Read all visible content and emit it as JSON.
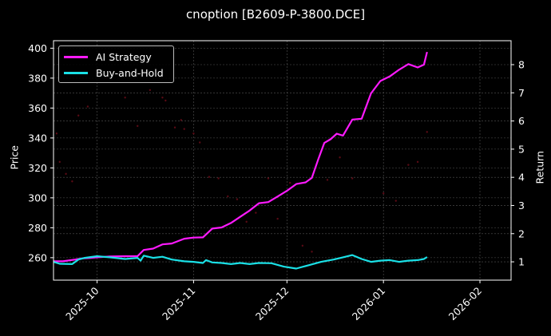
{
  "title": "cnoption [B2609-P-3800.DCE]",
  "axes": {
    "left_label": "Price",
    "right_label": "Return",
    "left_ticks": [
      "260",
      "280",
      "300",
      "320",
      "340",
      "360",
      "380",
      "400"
    ],
    "right_ticks": [
      "1",
      "2",
      "3",
      "4",
      "5",
      "6",
      "7",
      "8"
    ],
    "x_ticks": [
      "2025-10",
      "2025-11",
      "2025-12",
      "2026-01",
      "2026-02"
    ]
  },
  "legend": {
    "items": [
      {
        "label": "AI Strategy",
        "color": "#ff1aff"
      },
      {
        "label": "Buy-and-Hold",
        "color": "#1ae0e6"
      }
    ]
  },
  "colors": {
    "background": "#000000",
    "ai_strategy": "#ff1aff",
    "buy_and_hold": "#1ae0e6",
    "price_points": "#5a0a14",
    "grid": "#555555",
    "axis": "#ffffff"
  },
  "chart_data": {
    "type": "line",
    "title": "cnoption [B2609-P-3800.DCE]",
    "xlabel": "",
    "ylabel": "Price",
    "ylabel_right": "Return",
    "ylim": [
      245,
      405
    ],
    "ylim_right": [
      0.35,
      8.85
    ],
    "xlim": [
      "2025-09-17",
      "2026-02-11"
    ],
    "grid": true,
    "legend_position": "upper left",
    "x_ticks": [
      "2025-10",
      "2025-11",
      "2025-12",
      "2026-01",
      "2026-02"
    ],
    "series": [
      {
        "name": "AI Strategy",
        "axis": "right",
        "x": [
          "2025-09-17",
          "2025-09-20",
          "2025-09-24",
          "2025-09-26",
          "2025-09-29",
          "2025-10-01",
          "2025-10-05",
          "2025-10-10",
          "2025-10-14",
          "2025-10-16",
          "2025-10-19",
          "2025-10-22",
          "2025-10-25",
          "2025-10-29",
          "2025-11-01",
          "2025-11-04",
          "2025-11-07",
          "2025-11-10",
          "2025-11-13",
          "2025-11-16",
          "2025-11-19",
          "2025-11-22",
          "2025-11-25",
          "2025-11-28",
          "2025-12-01",
          "2025-12-04",
          "2025-12-07",
          "2025-12-09",
          "2025-12-11",
          "2025-12-13",
          "2025-12-15",
          "2025-12-17",
          "2025-12-19",
          "2025-12-22",
          "2025-12-25",
          "2025-12-28",
          "2025-12-31",
          "2026-01-03",
          "2026-01-06",
          "2026-01-09",
          "2026-01-12",
          "2026-01-14",
          "2026-01-15"
        ],
        "values": [
          1.02,
          1.02,
          1.08,
          1.12,
          1.14,
          1.16,
          1.19,
          1.2,
          1.2,
          1.42,
          1.47,
          1.62,
          1.65,
          1.82,
          1.86,
          1.87,
          2.18,
          2.22,
          2.38,
          2.6,
          2.82,
          3.08,
          3.12,
          3.32,
          3.52,
          3.76,
          3.82,
          3.98,
          4.62,
          5.22,
          5.35,
          5.55,
          5.48,
          6.05,
          6.08,
          6.98,
          7.42,
          7.58,
          7.82,
          8.02,
          7.9,
          8.0,
          8.45
        ]
      },
      {
        "name": "Buy-and-Hold",
        "axis": "right",
        "x": [
          "2025-09-17",
          "2025-09-19",
          "2025-09-23",
          "2025-09-25",
          "2025-09-27",
          "2025-10-01",
          "2025-10-05",
          "2025-10-10",
          "2025-10-14",
          "2025-10-15",
          "2025-10-16",
          "2025-10-19",
          "2025-10-22",
          "2025-10-25",
          "2025-10-29",
          "2025-11-01",
          "2025-11-04",
          "2025-11-05",
          "2025-11-07",
          "2025-11-10",
          "2025-11-13",
          "2025-11-16",
          "2025-11-19",
          "2025-11-22",
          "2025-11-26",
          "2025-11-30",
          "2025-12-04",
          "2025-12-08",
          "2025-12-12",
          "2025-12-16",
          "2025-12-19",
          "2025-12-22",
          "2025-12-25",
          "2025-12-28",
          "2025-12-31",
          "2026-01-03",
          "2026-01-06",
          "2026-01-09",
          "2026-01-12",
          "2026-01-14",
          "2026-01-15"
        ],
        "values": [
          1.0,
          0.93,
          0.92,
          1.08,
          1.14,
          1.2,
          1.16,
          1.1,
          1.14,
          1.04,
          1.22,
          1.14,
          1.18,
          1.08,
          1.02,
          1.0,
          0.96,
          1.06,
          0.98,
          0.96,
          0.92,
          0.96,
          0.92,
          0.96,
          0.95,
          0.83,
          0.76,
          0.88,
          1.0,
          1.08,
          1.16,
          1.24,
          1.1,
          1.0,
          1.04,
          1.06,
          1.0,
          1.04,
          1.06,
          1.1,
          1.17
        ]
      },
      {
        "name": "Price",
        "axis": "left",
        "type": "scatter",
        "x": [
          "2025-09-18",
          "2025-09-19",
          "2025-09-21",
          "2025-09-23",
          "2025-09-25",
          "2025-09-28",
          "2025-10-04",
          "2025-10-10",
          "2025-10-14",
          "2025-10-18",
          "2025-10-22",
          "2025-10-23",
          "2025-10-26",
          "2025-10-28",
          "2025-10-29",
          "2025-11-01",
          "2025-11-03",
          "2025-11-06",
          "2025-11-09",
          "2025-11-12",
          "2025-11-15",
          "2025-11-18",
          "2025-11-21",
          "2025-11-25",
          "2025-11-28",
          "2025-12-02",
          "2025-12-06",
          "2025-12-09",
          "2025-12-14",
          "2025-12-18",
          "2025-12-22",
          "2025-12-27",
          "2026-01-01",
          "2026-01-05",
          "2026-01-09",
          "2026-01-12",
          "2026-01-15"
        ],
        "values": [
          343,
          324,
          316,
          311,
          355,
          361,
          380,
          367,
          348,
          372,
          367,
          365,
          347,
          352,
          346,
          343,
          337,
          314,
          313,
          301,
          299,
          284,
          290,
          313,
          286,
          310,
          268,
          264,
          312,
          327,
          313,
          365,
          303,
          298,
          322,
          324,
          344
        ]
      }
    ]
  }
}
